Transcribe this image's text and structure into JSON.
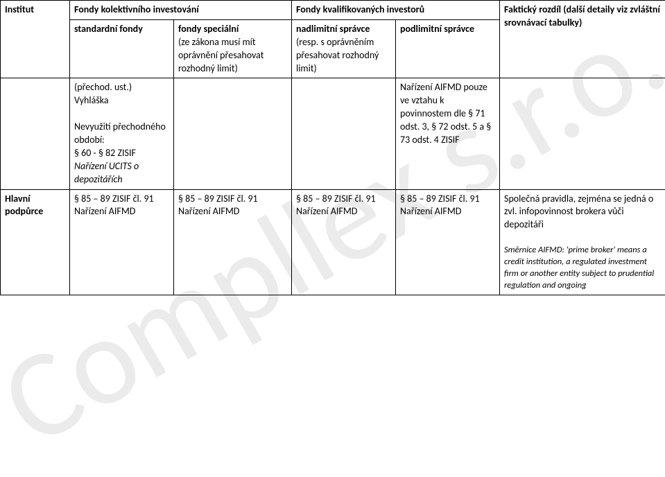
{
  "watermark": "Compllex s.r.o.",
  "table": {
    "header": {
      "institut": "Institut",
      "group_left": "Fondy kolektivního investování",
      "group_right": "Fondy kvalifikovaných investorů",
      "c1": "standardní fondy",
      "c2_pre": "fondy speciální",
      "c2_sub": "(ze zákona musí mít oprávnění přesahovat rozhodný limit)",
      "c3_pre": "nadlimitní správce",
      "c3_sub": "(resp. s oprávněním přesahovat rozhodný limit)",
      "c4": "podlimitní správce",
      "c5_pre": "Faktický rozdíl",
      "c5_sub": " (další detaily viz zvláštní srovnávací tabulky)"
    },
    "row1": {
      "c1_a": "(přechod. ust.)",
      "c1_b": "Vyhláška",
      "c1_c": "Nevyužití přechodného období:",
      "c1_d": "§ 60 - § 82 ZISIF",
      "c1_e": "Nařízení UCITS o depozitářích",
      "c4_a": "Nařízení AIFMD pouze ve vztahu k povinnostem dle § 71 odst. 3, § 72 odst. 5 a § 73 odst. 4 ZISIF"
    },
    "row2": {
      "c0": "Hlavní podpůrce",
      "c1": "§ 85 – 89 ZISIF čl. 91 Nařízení AIFMD",
      "c2": "§ 85 – 89 ZISIF čl. 91 Nařízení AIFMD",
      "c3": "§ 85 – 89 ZISIF čl. 91 Nařízení AIFMD",
      "c4": "§ 85 – 89 ZISIF čl. 91 Nařízení AIFMD",
      "c5_a": "Společná pravidla, zejména se jedná o zvl. infopovinnost brokera vůči depozitáři",
      "c5_b": "Směrnice AIFMD:  'prime broker' means a credit institution, a regulated investment firm or another entity subject to prudential regulation and ongoing"
    }
  }
}
